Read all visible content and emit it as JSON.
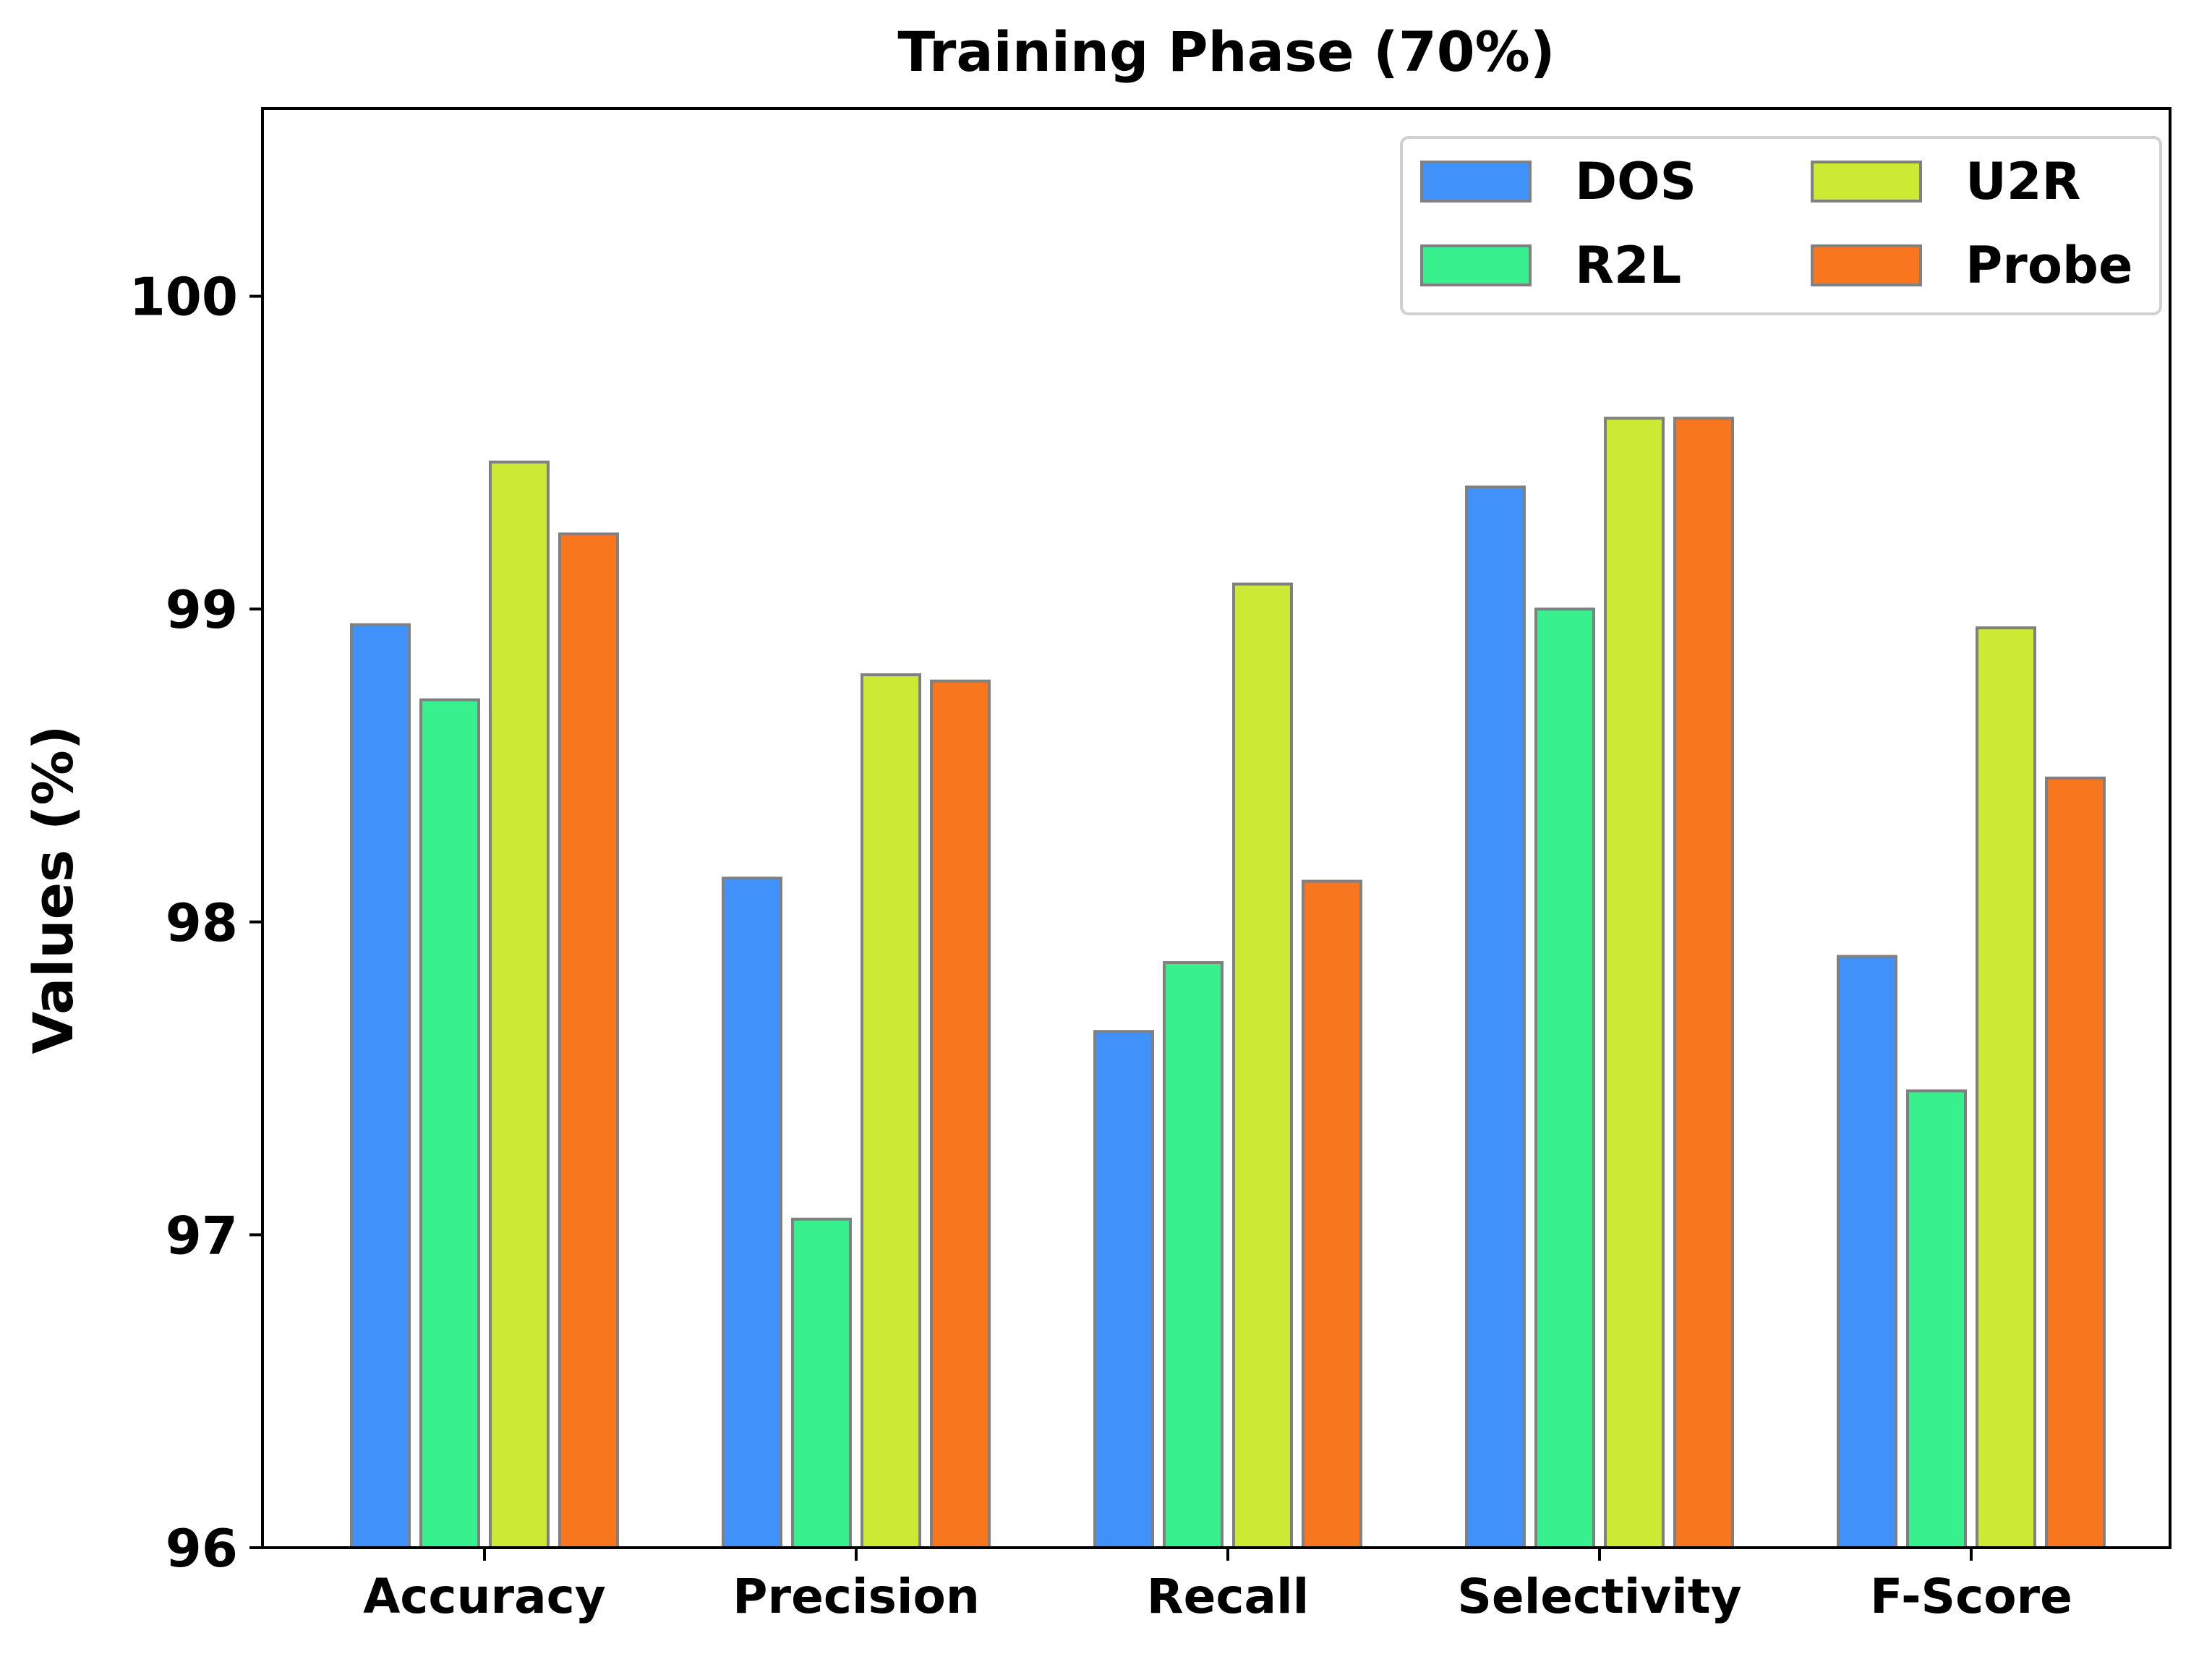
{
  "chart_data": {
    "type": "bar",
    "title": "Training Phase (70%)",
    "xlabel": "",
    "ylabel": "Values (%)",
    "ylim": [
      96,
      100.6
    ],
    "yticks": [
      96,
      97,
      98,
      99,
      100
    ],
    "grid": false,
    "legend_position": "top-right",
    "categories": [
      "Accuracy",
      "Precision",
      "Recall",
      "Selectivity",
      "F-Score"
    ],
    "series": [
      {
        "name": "DOS",
        "color": "#4191fb",
        "values": [
          98.95,
          98.14,
          97.65,
          99.39,
          97.89
        ]
      },
      {
        "name": "R2L",
        "color": "#38f08e",
        "values": [
          98.71,
          97.05,
          97.87,
          99.0,
          97.46
        ]
      },
      {
        "name": "U2R",
        "color": "#cce934",
        "values": [
          99.47,
          98.79,
          99.08,
          99.61,
          98.94
        ]
      },
      {
        "name": "Probe",
        "color": "#f7761e",
        "values": [
          99.24,
          98.77,
          98.13,
          99.61,
          98.46
        ]
      }
    ]
  }
}
